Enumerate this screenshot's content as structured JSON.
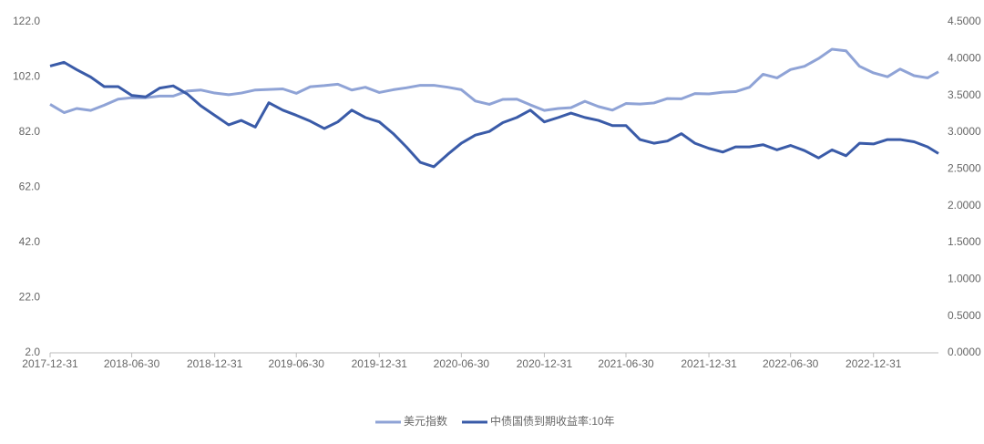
{
  "chart_data": {
    "type": "line",
    "x": [
      "2017-12-31",
      "2018-01-31",
      "2018-02-28",
      "2018-03-31",
      "2018-04-30",
      "2018-05-31",
      "2018-06-30",
      "2018-07-31",
      "2018-08-31",
      "2018-09-30",
      "2018-10-31",
      "2018-11-30",
      "2018-12-31",
      "2019-01-31",
      "2019-02-28",
      "2019-03-31",
      "2019-04-30",
      "2019-05-31",
      "2019-06-30",
      "2019-07-31",
      "2019-08-31",
      "2019-09-30",
      "2019-10-31",
      "2019-11-30",
      "2019-12-31",
      "2020-01-31",
      "2020-02-29",
      "2020-03-31",
      "2020-04-30",
      "2020-05-31",
      "2020-06-30",
      "2020-07-31",
      "2020-08-31",
      "2020-09-30",
      "2020-10-31",
      "2020-11-30",
      "2020-12-31",
      "2021-01-31",
      "2021-02-28",
      "2021-03-31",
      "2021-04-30",
      "2021-05-31",
      "2021-06-30",
      "2021-07-31",
      "2021-08-31",
      "2021-09-30",
      "2021-10-31",
      "2021-11-30",
      "2021-12-31",
      "2022-01-31",
      "2022-02-28",
      "2022-03-31",
      "2022-04-30",
      "2022-05-31",
      "2022-06-30",
      "2022-07-31",
      "2022-08-31",
      "2022-09-30",
      "2022-10-31",
      "2022-11-30",
      "2022-12-31",
      "2023-01-31",
      "2023-02-28",
      "2023-03-31",
      "2023-04-30",
      "2023-05-24"
    ],
    "series": [
      {
        "name": "美元指数",
        "color": "#8fa3d6",
        "axis": "y",
        "values": [
          92.1,
          89.1,
          90.6,
          89.9,
          91.8,
          94.0,
          94.5,
          94.5,
          95.1,
          95.1,
          96.9,
          97.3,
          96.2,
          95.6,
          96.2,
          97.3,
          97.5,
          97.7,
          96.1,
          98.5,
          98.9,
          99.4,
          97.3,
          98.3,
          96.4,
          97.4,
          98.1,
          99.0,
          99.0,
          98.3,
          97.4,
          93.3,
          92.1,
          93.9,
          94.0,
          91.9,
          89.9,
          90.6,
          90.9,
          93.2,
          91.3,
          90.0,
          92.4,
          92.2,
          92.6,
          94.2,
          94.1,
          96.0,
          95.9,
          96.5,
          96.7,
          98.3,
          103.0,
          101.7,
          104.7,
          105.9,
          108.7,
          112.1,
          111.5,
          105.9,
          103.5,
          102.1,
          104.9,
          102.5,
          101.7,
          103.9
        ]
      },
      {
        "name": "中债国债到期收益率:10年",
        "color": "#3a5ba8",
        "axis": "y2",
        "values": [
          3.9,
          3.95,
          3.85,
          3.75,
          3.62,
          3.62,
          3.5,
          3.48,
          3.6,
          3.63,
          3.52,
          3.36,
          3.23,
          3.1,
          3.16,
          3.07,
          3.4,
          3.3,
          3.23,
          3.15,
          3.05,
          3.14,
          3.3,
          3.2,
          3.14,
          2.98,
          2.8,
          2.59,
          2.53,
          2.7,
          2.85,
          2.96,
          3.01,
          3.13,
          3.2,
          3.3,
          3.14,
          3.2,
          3.26,
          3.2,
          3.16,
          3.09,
          3.09,
          2.9,
          2.85,
          2.88,
          2.98,
          2.85,
          2.78,
          2.73,
          2.8,
          2.8,
          2.83,
          2.76,
          2.82,
          2.75,
          2.65,
          2.76,
          2.68,
          2.85,
          2.84,
          2.9,
          2.9,
          2.87,
          2.8,
          2.71
        ]
      }
    ],
    "xlim": [
      "2017-12-31",
      "2023-05-24"
    ],
    "xticks": [
      "2017-12-31",
      "2018-06-30",
      "2018-12-31",
      "2019-06-30",
      "2019-12-31",
      "2020-06-30",
      "2020-12-31",
      "2021-06-30",
      "2021-12-31",
      "2022-06-30",
      "2022-12-31"
    ],
    "ylim": [
      2,
      122
    ],
    "yticks": [
      {
        "value": 2,
        "label": "2.0"
      },
      {
        "value": 22,
        "label": "22.0"
      },
      {
        "value": 42,
        "label": "42.0"
      },
      {
        "value": 62,
        "label": "62.0"
      },
      {
        "value": 82,
        "label": "82.0"
      },
      {
        "value": 102,
        "label": "102.0"
      },
      {
        "value": 122,
        "label": "122.0"
      }
    ],
    "y2lim": [
      0,
      4.5
    ],
    "y2ticks": [
      {
        "value": 0,
        "label": "0.0000"
      },
      {
        "value": 0.5,
        "label": "0.5000"
      },
      {
        "value": 1,
        "label": "1.0000"
      },
      {
        "value": 1.5,
        "label": "1.5000"
      },
      {
        "value": 2,
        "label": "2.0000"
      },
      {
        "value": 2.5,
        "label": "2.5000"
      },
      {
        "value": 3,
        "label": "3.0000"
      },
      {
        "value": 3.5,
        "label": "3.5000"
      },
      {
        "value": 4,
        "label": "4.0000"
      },
      {
        "value": 4.5,
        "label": "4.5000"
      }
    ],
    "grid": false,
    "legend": "bottom"
  }
}
